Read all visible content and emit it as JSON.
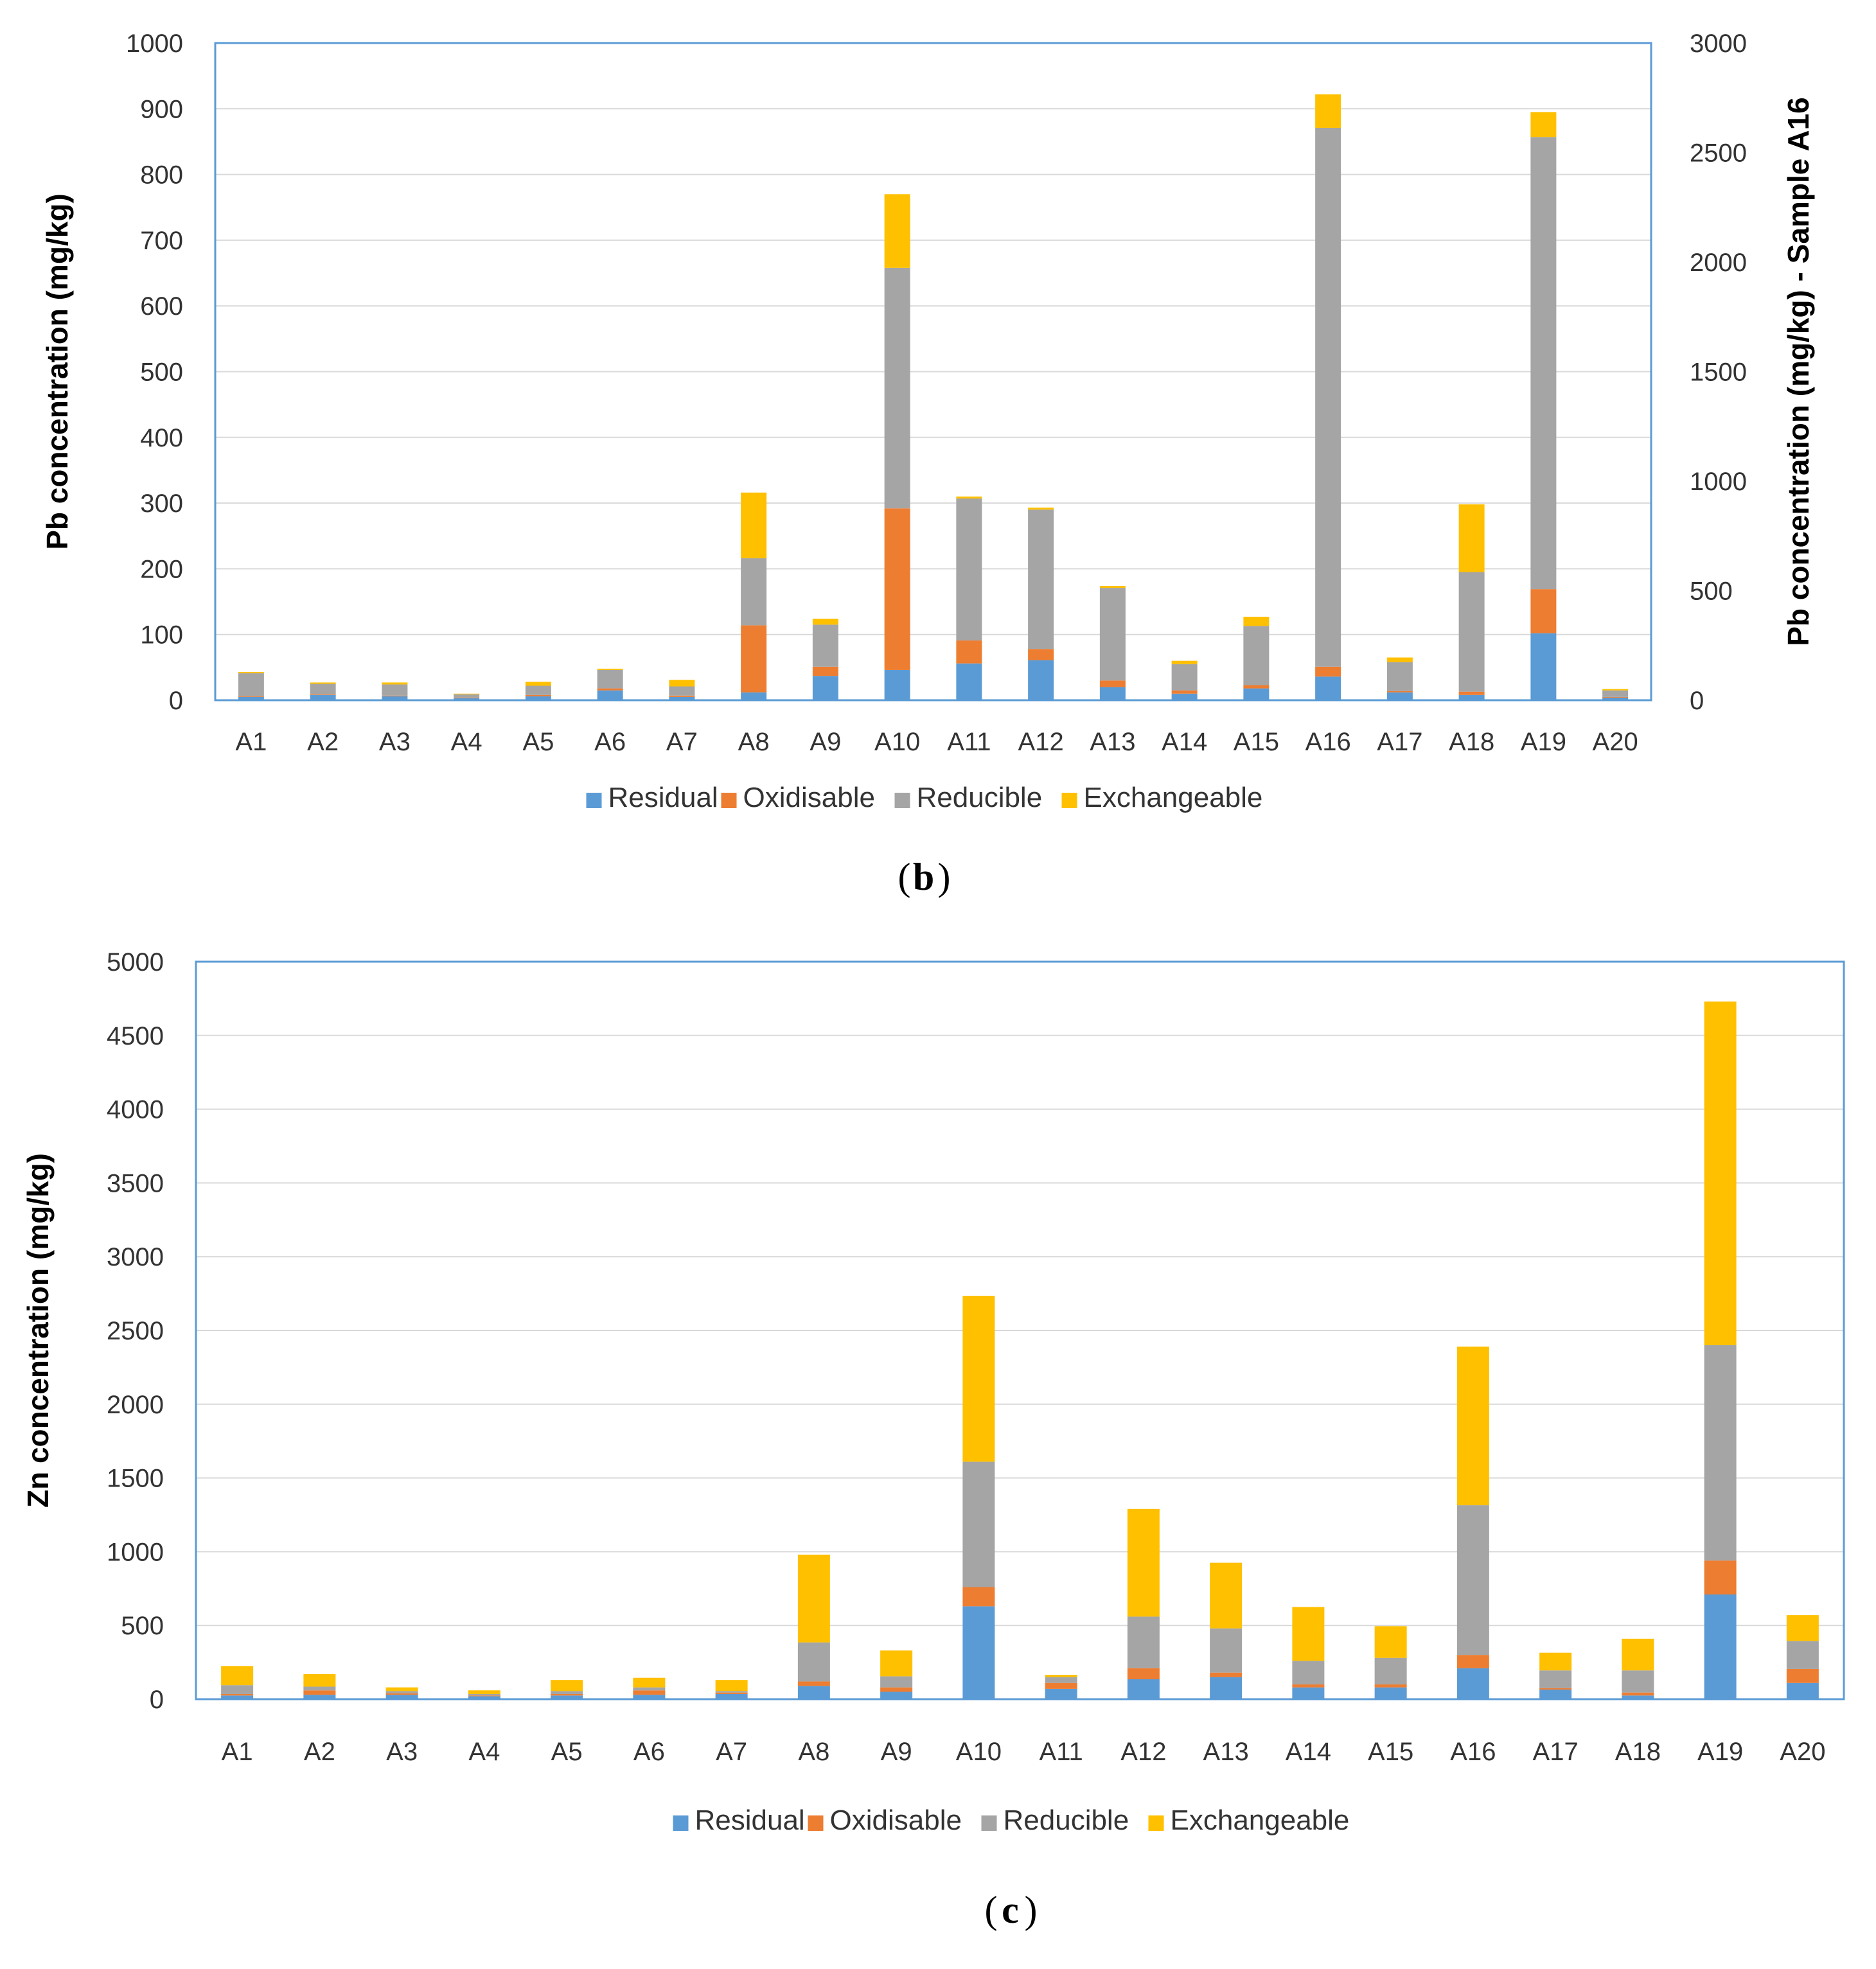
{
  "colors": {
    "Residual": "#5B9BD5",
    "Oxidisable": "#ED7D31",
    "Reducible": "#A5A5A5",
    "Exchangeable": "#FFC000",
    "frame": "#5B9BD5",
    "grid": "#D9D9D9"
  },
  "chart_data": [
    {
      "type": "bar",
      "stacked": true,
      "caption_letter": "b",
      "caption_open": "(",
      "caption_close": ")",
      "title": "",
      "xlabel": "",
      "ylabel": "Pb concentration (mg/kg)",
      "y2label": "Pb concentration (mg/kg) - Sample A16",
      "ylim": [
        0,
        1000
      ],
      "y2lim": [
        0,
        3000
      ],
      "yticks": [
        "0",
        "100",
        "200",
        "300",
        "400",
        "500",
        "600",
        "700",
        "800",
        "900",
        "1000"
      ],
      "y2ticks": [
        "0",
        "500",
        "1000",
        "1500",
        "2000",
        "2500",
        "3000"
      ],
      "grid": true,
      "legend_position": "bottom",
      "categories": [
        "A1",
        "A2",
        "A3",
        "A4",
        "A5",
        "A6",
        "A7",
        "A8",
        "A9",
        "A10",
        "A11",
        "A12",
        "A13",
        "A14",
        "A15",
        "A16",
        "A17",
        "A18",
        "A19",
        "A20"
      ],
      "series": [
        {
          "name": "Residual",
          "values": [
            5,
            8,
            6,
            3,
            6,
            15,
            5,
            12,
            37,
            46,
            56,
            61,
            20,
            10,
            18,
            36,
            12,
            8,
            102,
            4
          ]
        },
        {
          "name": "Oxidisable",
          "values": [
            1,
            1,
            1,
            1,
            2,
            3,
            2,
            102,
            14,
            246,
            35,
            17,
            10,
            5,
            5,
            15,
            2,
            5,
            67,
            1
          ]
        },
        {
          "name": "Reducible",
          "values": [
            35,
            16,
            17,
            5,
            14,
            28,
            14,
            102,
            64,
            366,
            216,
            212,
            141,
            40,
            90,
            820,
            44,
            182,
            688,
            10
          ]
        },
        {
          "name": "Exchangeable",
          "values": [
            2,
            2,
            3,
            1,
            6,
            2,
            10,
            100,
            9,
            112,
            3,
            3,
            3,
            5,
            14,
            51,
            7,
            103,
            38,
            2
          ]
        }
      ]
    },
    {
      "type": "bar",
      "stacked": true,
      "caption_letter": "c",
      "caption_open": "(",
      "caption_close": ")",
      "title": "",
      "xlabel": "",
      "ylabel": "Zn concentration (mg/kg)",
      "ylim": [
        0,
        5000
      ],
      "yticks": [
        "0",
        "500",
        "1000",
        "1500",
        "2000",
        "2500",
        "3000",
        "3500",
        "4000",
        "4500",
        "5000"
      ],
      "grid": true,
      "legend_position": "bottom",
      "categories": [
        "A1",
        "A2",
        "A3",
        "A4",
        "A5",
        "A6",
        "A7",
        "A8",
        "A9",
        "A10",
        "A11",
        "A12",
        "A13",
        "A14",
        "A15",
        "A16",
        "A17",
        "A18",
        "A19",
        "A20"
      ],
      "series": [
        {
          "name": "Residual",
          "values": [
            25,
            30,
            30,
            20,
            25,
            30,
            35,
            90,
            50,
            630,
            70,
            135,
            150,
            80,
            80,
            210,
            65,
            25,
            710,
            110
          ]
        },
        {
          "name": "Oxidisable",
          "values": [
            10,
            30,
            10,
            5,
            10,
            30,
            10,
            30,
            30,
            130,
            40,
            75,
            30,
            20,
            20,
            90,
            10,
            20,
            230,
            95
          ]
        },
        {
          "name": "Reducible",
          "values": [
            60,
            25,
            15,
            10,
            20,
            20,
            10,
            265,
            75,
            850,
            40,
            350,
            300,
            160,
            180,
            1015,
            120,
            150,
            1460,
            190
          ]
        },
        {
          "name": "Exchangeable",
          "values": [
            130,
            85,
            25,
            25,
            75,
            65,
            75,
            595,
            175,
            1125,
            15,
            730,
            445,
            365,
            215,
            1075,
            120,
            215,
            2330,
            175
          ]
        }
      ]
    }
  ]
}
